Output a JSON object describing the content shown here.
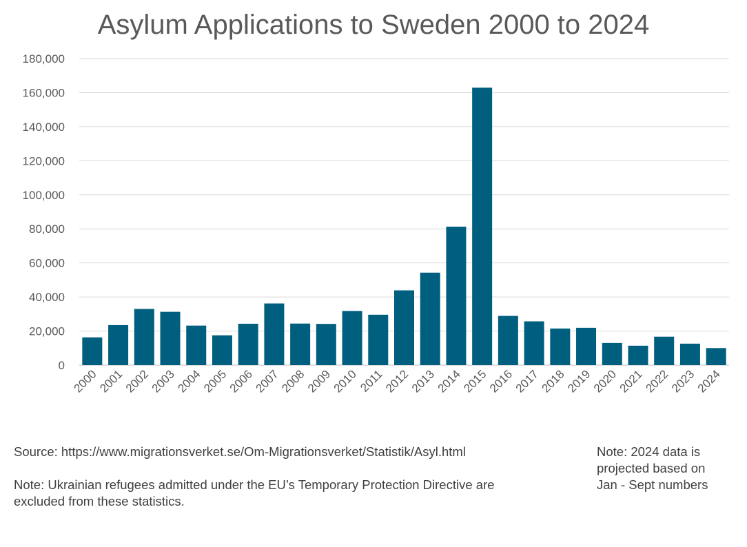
{
  "chart_data": {
    "type": "bar",
    "title": "Asylum Applications to Sweden 2000 to 2024",
    "xlabel": "",
    "ylabel": "",
    "ylim": [
      0,
      180000
    ],
    "yticks": [
      0,
      20000,
      40000,
      60000,
      80000,
      100000,
      120000,
      140000,
      160000,
      180000
    ],
    "ytick_labels": [
      "0",
      "20,000",
      "40,000",
      "60,000",
      "80,000",
      "100,000",
      "120,000",
      "140,000",
      "160,000",
      "180,000"
    ],
    "grid": true,
    "bar_color": "#005F7F",
    "categories": [
      "2000",
      "2001",
      "2002",
      "2003",
      "2004",
      "2005",
      "2006",
      "2007",
      "2008",
      "2009",
      "2010",
      "2011",
      "2012",
      "2013",
      "2014",
      "2015",
      "2016",
      "2017",
      "2018",
      "2019",
      "2020",
      "2021",
      "2022",
      "2023",
      "2024"
    ],
    "values": [
      16300,
      23500,
      33000,
      31300,
      23200,
      17500,
      24300,
      36200,
      24400,
      24200,
      31800,
      29600,
      43900,
      54300,
      81300,
      162900,
      28900,
      25700,
      21500,
      21900,
      13000,
      11400,
      16700,
      12600,
      10000
    ]
  },
  "notes": {
    "source": "Source: https://www.migrationsverket.se/Om-Migrationsverket/Statistik/Asyl.html",
    "ukraine_line1": "Note: Ukrainian refugees admitted under the EU’s Temporary Protection Directive are",
    "ukraine_line2": "excluded from these statistics.",
    "projection_line1": "Note: 2024 data is",
    "projection_line2": "projected based on",
    "projection_line3": "Jan - Sept numbers"
  }
}
